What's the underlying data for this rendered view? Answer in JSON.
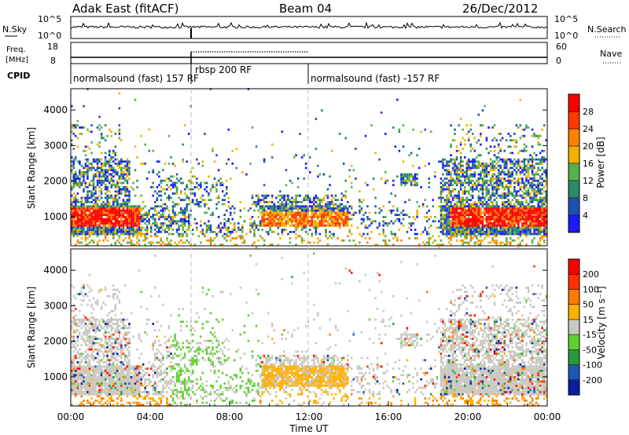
{
  "header": {
    "title": "Adak East (fitACF)",
    "beam": "Beam 04",
    "date": "26/Dec/2012"
  },
  "top_panels": {
    "nsky_label": "N.Sky",
    "nsky_tick_top": "10^5",
    "nsky_tick_bottom": "10^0",
    "nsearch_label": "N.Search",
    "nsearch_tick_top": "10^5",
    "nsearch_tick_bottom": "10^0",
    "freq_label_1": "Freq.",
    "freq_label_2": "[MHz]",
    "freq_tick_top": "18",
    "freq_tick_bottom": "8",
    "nave_label": "Nave",
    "nave_tick_top": "60",
    "nave_tick_bottom": "0",
    "cpid_label": "CPID",
    "cpid_segments": [
      {
        "label": "normalsound (fast) 157 RF",
        "start_hour": 0,
        "end_hour": 6
      },
      {
        "label": "rbsp 200 RF",
        "start_hour": 6,
        "end_hour": 12
      },
      {
        "label": "normalsound (fast) -157 RF",
        "start_hour": 12,
        "end_hour": 24
      }
    ]
  },
  "chart_data": [
    {
      "type": "heatmap",
      "name": "power",
      "ylabel": "Slant Range [km]",
      "ylim": [
        180,
        4600
      ],
      "yticks": [
        "1000",
        "2000",
        "3000",
        "4000"
      ],
      "colorbar_label": "Power [dB]",
      "colorbar_ticks": [
        "4",
        "8",
        "12",
        "16",
        "20",
        "24",
        "28"
      ],
      "colors": [
        "#1a1aff",
        "#1f4fb0",
        "#2a8a6a",
        "#55b24a",
        "#f0b000",
        "#ff7f00",
        "#ff3800",
        "#ff0000"
      ]
    },
    {
      "type": "heatmap",
      "name": "velocity",
      "ylabel": "Slant Range [km]",
      "ylim": [
        180,
        4600
      ],
      "yticks": [
        "1000",
        "2000",
        "3000",
        "4000"
      ],
      "colorbar_label": "Velocity [m s⁻¹]",
      "colorbar_ticks": [
        "200",
        "100",
        "50",
        "15",
        "-15",
        "-50",
        "-100",
        "-200"
      ],
      "colors": [
        "#0a1ea0",
        "#1f56b8",
        "#2a9a40",
        "#60d030",
        "#c8c8c0",
        "#ffb000",
        "#ff7a00",
        "#ff3000",
        "#ff0000"
      ],
      "xlabel": "Time UT",
      "xticks": [
        "00:00",
        "04:00",
        "08:00",
        "12:00",
        "16:00",
        "20:00",
        "00:00"
      ]
    }
  ]
}
